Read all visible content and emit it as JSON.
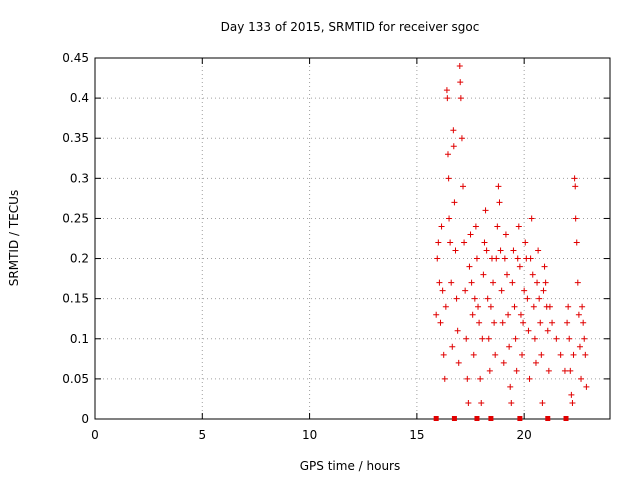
{
  "chart_data": {
    "type": "scatter",
    "title": "Day 133 of 2015, SRMTID for receiver sgoc",
    "xlabel": "GPS time / hours",
    "ylabel": "SRMTID / TECUs",
    "xlim": [
      0,
      24
    ],
    "ylim": [
      0,
      0.45
    ],
    "xticks": [
      0,
      5,
      10,
      15,
      20
    ],
    "yticks": [
      0,
      0.05,
      0.1,
      0.15,
      0.2,
      0.25,
      0.3,
      0.35,
      0.4,
      0.45
    ],
    "xtick_labels": [
      "0",
      "5",
      "10",
      "15",
      "20"
    ],
    "ytick_labels": [
      "0",
      "0.05",
      "0.1",
      "0.15",
      "0.2",
      "0.25",
      "0.3",
      "0.35",
      "0.4",
      "0.45"
    ],
    "grid": true,
    "marker": "+",
    "color": "#e00000",
    "series": [
      {
        "name": "SRMTID",
        "points": [
          [
            15.9,
            0.13
          ],
          [
            15.95,
            0.2
          ],
          [
            16.0,
            0.22
          ],
          [
            16.05,
            0.17
          ],
          [
            16.1,
            0.12
          ],
          [
            16.15,
            0.24
          ],
          [
            16.2,
            0.16
          ],
          [
            16.25,
            0.08
          ],
          [
            16.3,
            0.05
          ],
          [
            16.35,
            0.14
          ],
          [
            16.4,
            0.41
          ],
          [
            16.42,
            0.4
          ],
          [
            16.45,
            0.33
          ],
          [
            16.48,
            0.3
          ],
          [
            16.5,
            0.25
          ],
          [
            16.55,
            0.22
          ],
          [
            16.6,
            0.17
          ],
          [
            16.65,
            0.09
          ],
          [
            16.7,
            0.36
          ],
          [
            16.72,
            0.34
          ],
          [
            16.75,
            0.27
          ],
          [
            16.8,
            0.21
          ],
          [
            16.85,
            0.15
          ],
          [
            16.9,
            0.11
          ],
          [
            16.95,
            0.07
          ],
          [
            17.0,
            0.44
          ],
          [
            17.02,
            0.42
          ],
          [
            17.05,
            0.4
          ],
          [
            17.1,
            0.35
          ],
          [
            17.15,
            0.29
          ],
          [
            17.2,
            0.22
          ],
          [
            17.25,
            0.16
          ],
          [
            17.3,
            0.1
          ],
          [
            17.35,
            0.05
          ],
          [
            17.4,
            0.02
          ],
          [
            17.45,
            0.19
          ],
          [
            17.5,
            0.23
          ],
          [
            17.55,
            0.17
          ],
          [
            17.6,
            0.13
          ],
          [
            17.65,
            0.08
          ],
          [
            17.7,
            0.15
          ],
          [
            17.75,
            0.24
          ],
          [
            17.8,
            0.2
          ],
          [
            17.85,
            0.14
          ],
          [
            17.9,
            0.12
          ],
          [
            17.95,
            0.05
          ],
          [
            18.0,
            0.02
          ],
          [
            18.05,
            0.1
          ],
          [
            18.1,
            0.18
          ],
          [
            18.15,
            0.22
          ],
          [
            18.2,
            0.26
          ],
          [
            18.25,
            0.21
          ],
          [
            18.3,
            0.15
          ],
          [
            18.35,
            0.1
          ],
          [
            18.4,
            0.06
          ],
          [
            18.45,
            0.14
          ],
          [
            18.5,
            0.2
          ],
          [
            18.55,
            0.17
          ],
          [
            18.6,
            0.12
          ],
          [
            18.65,
            0.08
          ],
          [
            18.7,
            0.2
          ],
          [
            18.75,
            0.24
          ],
          [
            18.8,
            0.29
          ],
          [
            18.85,
            0.27
          ],
          [
            18.9,
            0.21
          ],
          [
            18.95,
            0.16
          ],
          [
            19.0,
            0.12
          ],
          [
            19.05,
            0.07
          ],
          [
            19.1,
            0.2
          ],
          [
            19.15,
            0.23
          ],
          [
            19.2,
            0.18
          ],
          [
            19.25,
            0.13
          ],
          [
            19.3,
            0.09
          ],
          [
            19.35,
            0.04
          ],
          [
            19.4,
            0.02
          ],
          [
            19.45,
            0.17
          ],
          [
            19.5,
            0.21
          ],
          [
            19.55,
            0.14
          ],
          [
            19.6,
            0.1
          ],
          [
            19.65,
            0.06
          ],
          [
            19.7,
            0.2
          ],
          [
            19.75,
            0.24
          ],
          [
            19.8,
            0.19
          ],
          [
            19.85,
            0.13
          ],
          [
            19.9,
            0.08
          ],
          [
            19.95,
            0.12
          ],
          [
            20.0,
            0.16
          ],
          [
            20.05,
            0.22
          ],
          [
            20.1,
            0.2
          ],
          [
            20.15,
            0.15
          ],
          [
            20.2,
            0.11
          ],
          [
            20.25,
            0.05
          ],
          [
            20.3,
            0.2
          ],
          [
            20.35,
            0.25
          ],
          [
            20.4,
            0.18
          ],
          [
            20.45,
            0.14
          ],
          [
            20.5,
            0.1
          ],
          [
            20.55,
            0.07
          ],
          [
            20.6,
            0.17
          ],
          [
            20.65,
            0.21
          ],
          [
            20.7,
            0.15
          ],
          [
            20.75,
            0.12
          ],
          [
            20.8,
            0.08
          ],
          [
            20.85,
            0.02
          ],
          [
            20.9,
            0.16
          ],
          [
            20.95,
            0.19
          ],
          [
            21.0,
            0.17
          ],
          [
            21.05,
            0.14
          ],
          [
            21.1,
            0.11
          ],
          [
            21.15,
            0.06
          ],
          [
            21.2,
            0.14
          ],
          [
            21.3,
            0.12
          ],
          [
            21.5,
            0.1
          ],
          [
            21.7,
            0.08
          ],
          [
            21.9,
            0.06
          ],
          [
            22.0,
            0.12
          ],
          [
            22.05,
            0.14
          ],
          [
            22.1,
            0.1
          ],
          [
            22.15,
            0.06
          ],
          [
            22.2,
            0.03
          ],
          [
            22.25,
            0.02
          ],
          [
            22.3,
            0.08
          ],
          [
            22.35,
            0.3
          ],
          [
            22.38,
            0.29
          ],
          [
            22.4,
            0.25
          ],
          [
            22.45,
            0.22
          ],
          [
            22.5,
            0.17
          ],
          [
            22.55,
            0.13
          ],
          [
            22.6,
            0.09
          ],
          [
            22.65,
            0.05
          ],
          [
            22.7,
            0.14
          ],
          [
            22.75,
            0.12
          ],
          [
            22.8,
            0.1
          ],
          [
            22.85,
            0.08
          ],
          [
            22.9,
            0.04
          ]
        ]
      }
    ],
    "zero_markers": [
      15.9,
      16.75,
      17.8,
      18.45,
      19.8,
      21.1,
      21.95
    ]
  }
}
